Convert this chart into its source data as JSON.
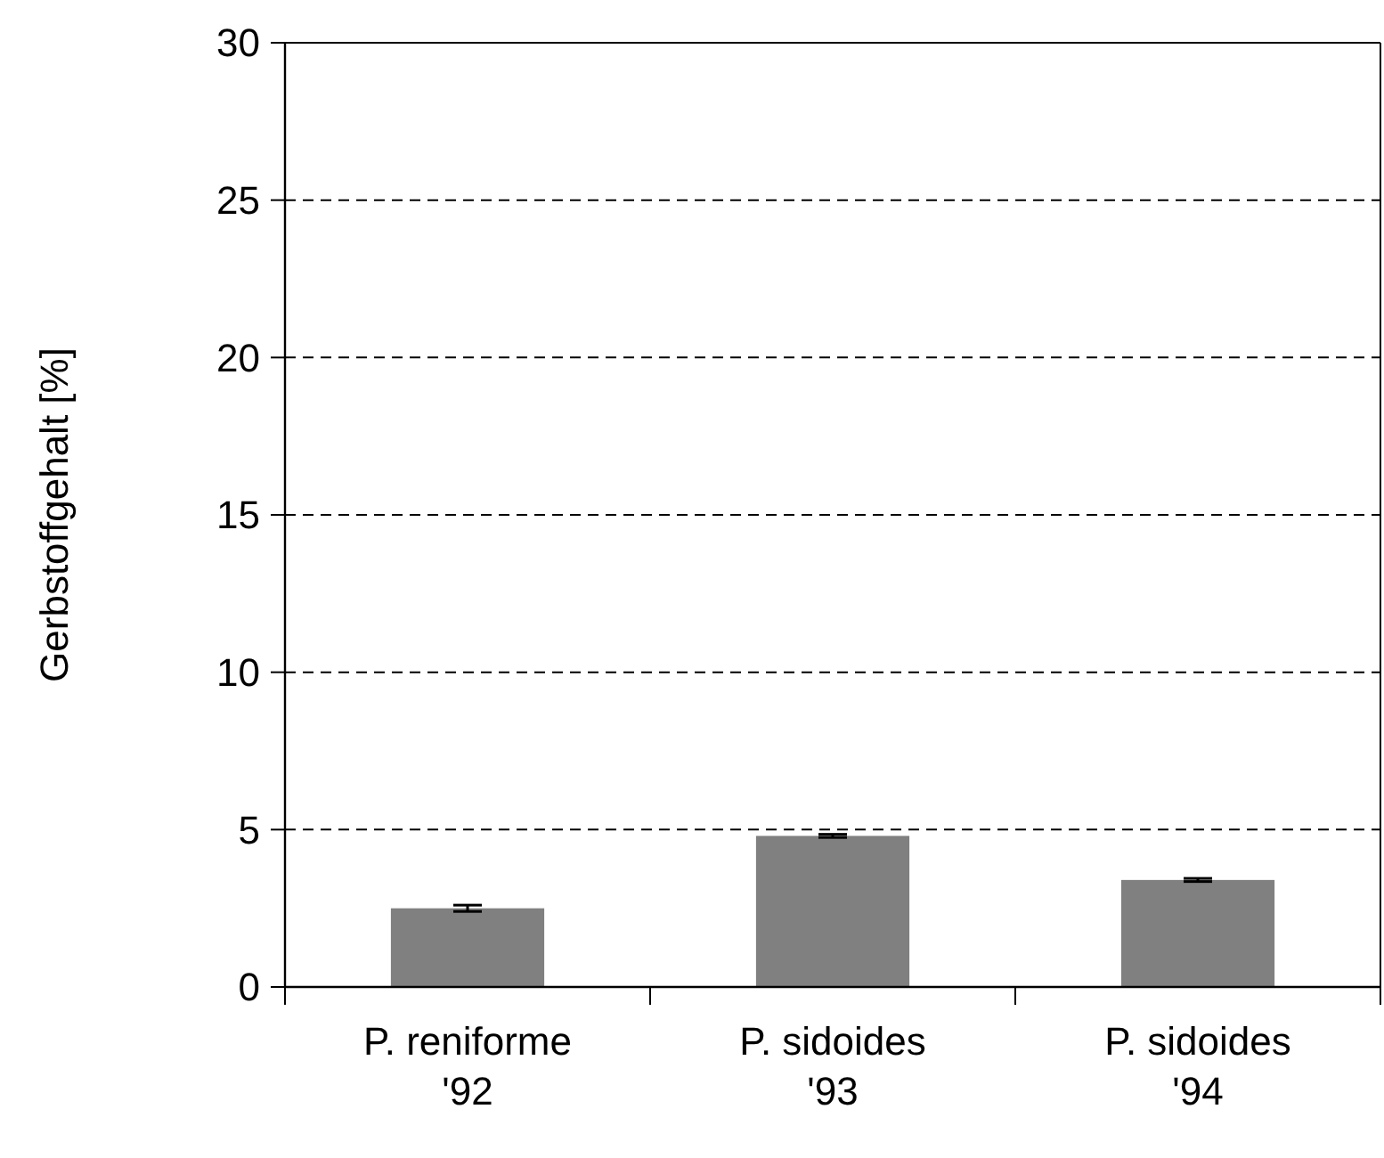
{
  "chart_data": {
    "type": "bar",
    "ylabel": "Gerbstoffgehalt [%]",
    "categories": [
      "P. reniforme '92",
      "P. sidoides '93",
      "P. sidoides '94"
    ],
    "values": [
      2.5,
      4.8,
      3.4
    ],
    "errors": [
      0.1,
      0.05,
      0.05
    ],
    "color": "#808080",
    "ylim": [
      0,
      30
    ],
    "yticks": [
      0,
      5,
      10,
      15,
      20,
      25,
      30
    ],
    "grid": "y"
  }
}
